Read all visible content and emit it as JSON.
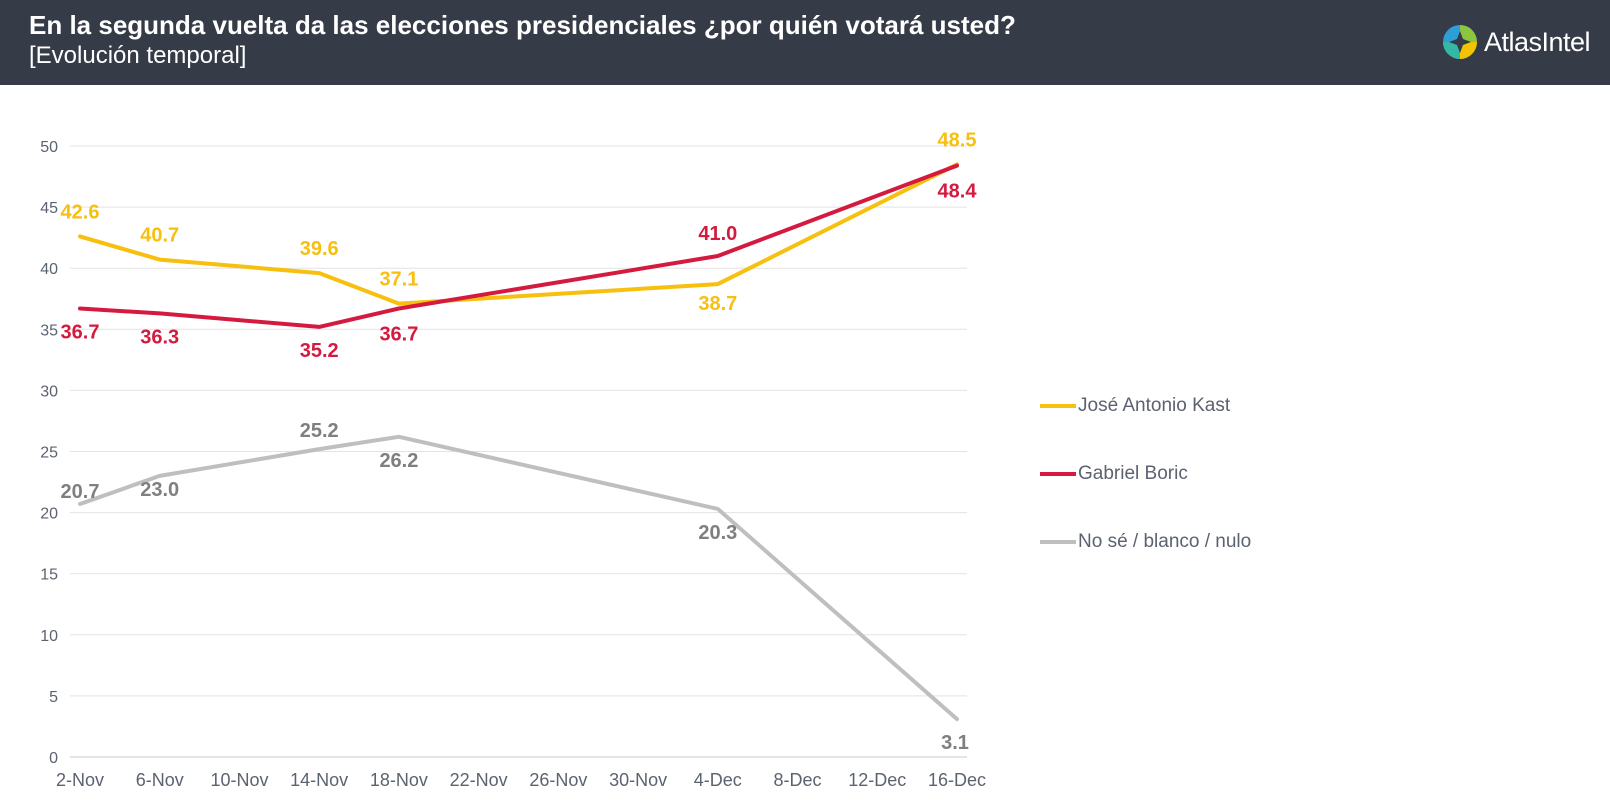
{
  "header": {
    "title": "En la segunda vuelta da las elecciones presidenciales ¿por quién votará usted?",
    "subtitle": "[Evolución temporal]",
    "logo_text": "AtlasIntel",
    "logo_icon": "atlasintel-logo-icon",
    "background": "#353b47"
  },
  "chart_data": {
    "type": "line",
    "title": "En la segunda vuelta da las elecciones presidenciales ¿por quién votará usted?",
    "subtitle": "[Evolución temporal]",
    "x_ticks": [
      "2-Nov",
      "6-Nov",
      "10-Nov",
      "14-Nov",
      "18-Nov",
      "22-Nov",
      "26-Nov",
      "30-Nov",
      "4-Dec",
      "8-Dec",
      "12-Dec",
      "16-Dec"
    ],
    "x_range": [
      "2-Nov",
      "16-Dec"
    ],
    "y_ticks": [
      0,
      5,
      10,
      15,
      20,
      25,
      30,
      35,
      40,
      45,
      50
    ],
    "ylim": [
      0,
      50
    ],
    "grid": true,
    "legend_position": "right",
    "series": [
      {
        "name": "José Antonio Kast",
        "color": "#f7bf0e",
        "points": [
          {
            "x": "2-Nov",
            "y": 42.6,
            "label": "42.6"
          },
          {
            "x": "6-Nov",
            "y": 40.7,
            "label": "40.7"
          },
          {
            "x": "14-Nov",
            "y": 39.6,
            "label": "39.6"
          },
          {
            "x": "18-Nov",
            "y": 37.1,
            "label": "37.1"
          },
          {
            "x": "4-Dec",
            "y": 38.7,
            "label": "38.7"
          },
          {
            "x": "16-Dec",
            "y": 48.5,
            "label": "48.5"
          }
        ]
      },
      {
        "name": "Gabriel Boric",
        "color": "#d41a3e",
        "points": [
          {
            "x": "2-Nov",
            "y": 36.7,
            "label": "36.7"
          },
          {
            "x": "6-Nov",
            "y": 36.3,
            "label": "36.3"
          },
          {
            "x": "14-Nov",
            "y": 35.2,
            "label": "35.2"
          },
          {
            "x": "18-Nov",
            "y": 36.7,
            "label": "36.7"
          },
          {
            "x": "4-Dec",
            "y": 41.0,
            "label": "41.0"
          },
          {
            "x": "16-Dec",
            "y": 48.4,
            "label": "48.4"
          }
        ]
      },
      {
        "name": "No sé / blanco / nulo",
        "color": "#bfbfbf",
        "label_color": "#7f7f7f",
        "points": [
          {
            "x": "2-Nov",
            "y": 20.7,
            "label": "20.7"
          },
          {
            "x": "6-Nov",
            "y": 23.0,
            "label": "23.0"
          },
          {
            "x": "14-Nov",
            "y": 25.2,
            "label": "25.2"
          },
          {
            "x": "18-Nov",
            "y": 26.2,
            "label": "26.2"
          },
          {
            "x": "4-Dec",
            "y": 20.3,
            "label": "20.3"
          },
          {
            "x": "16-Dec",
            "y": 3.1,
            "label": "3.1"
          }
        ]
      }
    ]
  }
}
